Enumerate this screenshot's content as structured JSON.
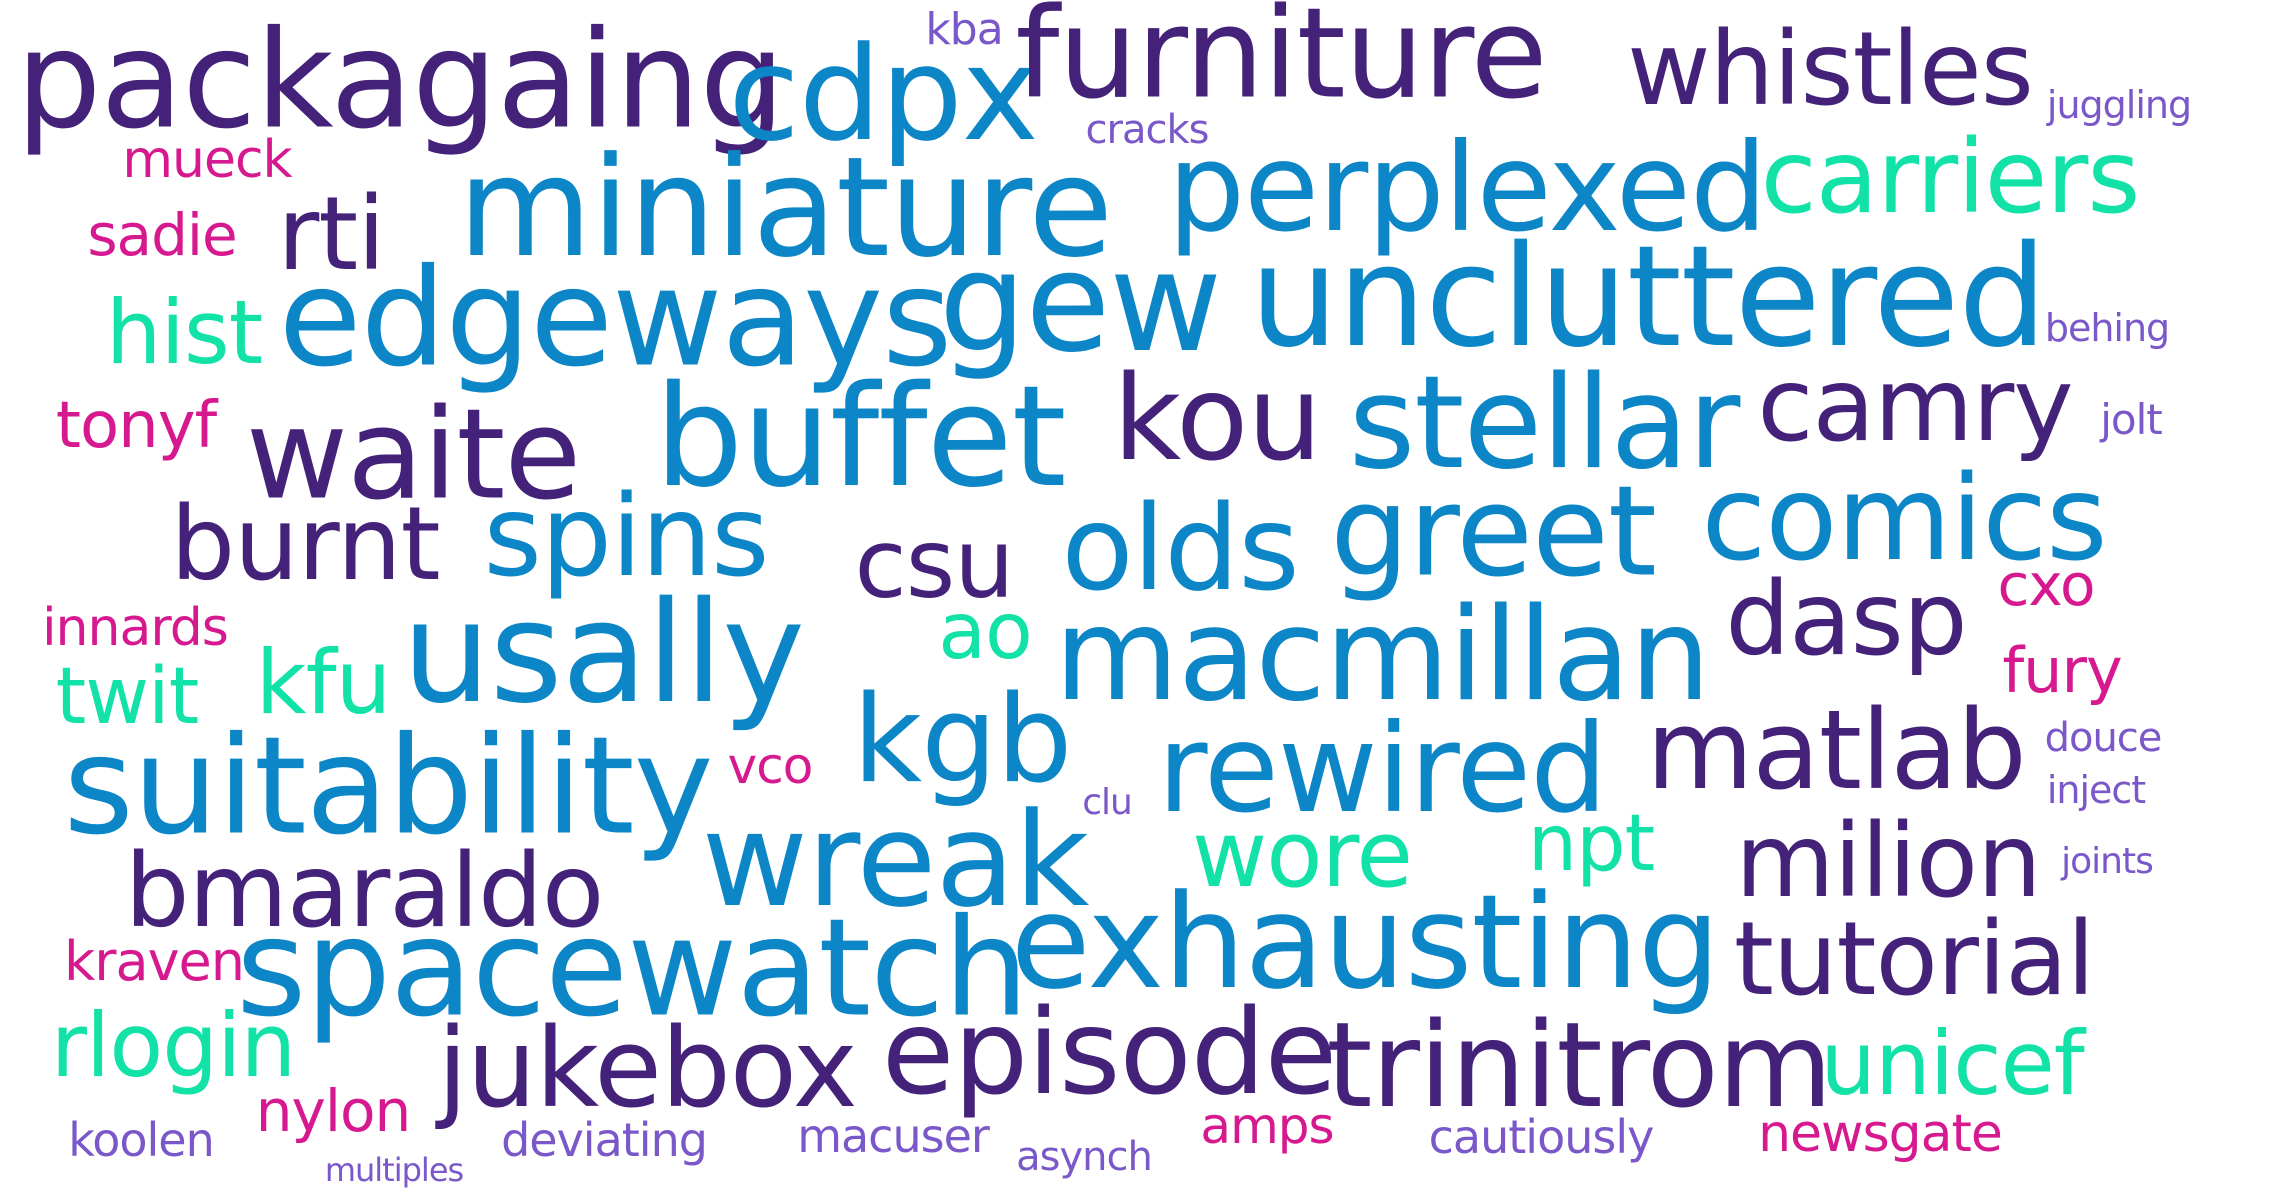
{
  "colors": {
    "c1": "#44227A",
    "c2": "#0C86C6",
    "c3": "#12E2A7",
    "c4": "#D6198F",
    "c5": "#7B58C9"
  },
  "words": [
    {
      "text": "packagaing",
      "color": "c1",
      "weight": 95
    },
    {
      "text": "cdpx",
      "color": "c2",
      "weight": 92
    },
    {
      "text": "furniture",
      "color": "c1",
      "weight": 92
    },
    {
      "text": "whistles",
      "color": "c1",
      "weight": 80
    },
    {
      "text": "kba",
      "color": "c5",
      "weight": 30
    },
    {
      "text": "juggling",
      "color": "c5",
      "weight": 24
    },
    {
      "text": "cracks",
      "color": "c5",
      "weight": 26
    },
    {
      "text": "mueck",
      "color": "c4",
      "weight": 34
    },
    {
      "text": "miniature",
      "color": "c2",
      "weight": 100
    },
    {
      "text": "perplexed",
      "color": "c2",
      "weight": 92
    },
    {
      "text": "carriers",
      "color": "c3",
      "weight": 78
    },
    {
      "text": "sadie",
      "color": "c4",
      "weight": 34
    },
    {
      "text": "rti",
      "color": "c1",
      "weight": 85
    },
    {
      "text": "edgeways",
      "color": "c2",
      "weight": 100
    },
    {
      "text": "gew",
      "color": "c2",
      "weight": 100
    },
    {
      "text": "uncluttered",
      "color": "c2",
      "weight": 100
    },
    {
      "text": "hist",
      "color": "c3",
      "weight": 50
    },
    {
      "text": "behing",
      "color": "c5",
      "weight": 24
    },
    {
      "text": "tonyf",
      "color": "c4",
      "weight": 40
    },
    {
      "text": "waite",
      "color": "c1",
      "weight": 90
    },
    {
      "text": "buffet",
      "color": "c2",
      "weight": 100
    },
    {
      "text": "kou",
      "color": "c1",
      "weight": 85
    },
    {
      "text": "stellar",
      "color": "c2",
      "weight": 100
    },
    {
      "text": "camry",
      "color": "c1",
      "weight": 80
    },
    {
      "text": "jolt",
      "color": "c5",
      "weight": 26
    },
    {
      "text": "burnt",
      "color": "c1",
      "weight": 85
    },
    {
      "text": "spins",
      "color": "c2",
      "weight": 90
    },
    {
      "text": "csu",
      "color": "c1",
      "weight": 70
    },
    {
      "text": "olds",
      "color": "c2",
      "weight": 95
    },
    {
      "text": "greet",
      "color": "c2",
      "weight": 100
    },
    {
      "text": "comics",
      "color": "c2",
      "weight": 90
    },
    {
      "text": "cxo",
      "color": "c4",
      "weight": 40
    },
    {
      "text": "innards",
      "color": "c4",
      "weight": 34
    },
    {
      "text": "usally",
      "color": "c2",
      "weight": 100
    },
    {
      "text": "ao",
      "color": "c3",
      "weight": 52
    },
    {
      "text": "macmillan",
      "color": "c2",
      "weight": 100
    },
    {
      "text": "dasp",
      "color": "c1",
      "weight": 80
    },
    {
      "text": "fury",
      "color": "c4",
      "weight": 40
    },
    {
      "text": "twit",
      "color": "c3",
      "weight": 50
    },
    {
      "text": "kfu",
      "color": "c3",
      "weight": 60
    },
    {
      "text": "kgb",
      "color": "c2",
      "weight": 100
    },
    {
      "text": "douce",
      "color": "c5",
      "weight": 26
    },
    {
      "text": "suitability",
      "color": "c2",
      "weight": 100
    },
    {
      "text": "vco",
      "color": "c4",
      "weight": 34
    },
    {
      "text": "rewired",
      "color": "c2",
      "weight": 100
    },
    {
      "text": "matlab",
      "color": "c1",
      "weight": 90
    },
    {
      "text": "inject",
      "color": "c5",
      "weight": 26
    },
    {
      "text": "clu",
      "color": "c5",
      "weight": 24
    },
    {
      "text": "wreak",
      "color": "c2",
      "weight": 100
    },
    {
      "text": "wore",
      "color": "c3",
      "weight": 60
    },
    {
      "text": "npt",
      "color": "c3",
      "weight": 52
    },
    {
      "text": "milion",
      "color": "c1",
      "weight": 85
    },
    {
      "text": "joints",
      "color": "c5",
      "weight": 24
    },
    {
      "text": "bmaraldo",
      "color": "c1",
      "weight": 85
    },
    {
      "text": "exhausting",
      "color": "c2",
      "weight": 100
    },
    {
      "text": "kraven",
      "color": "c4",
      "weight": 34
    },
    {
      "text": "spacewatch",
      "color": "c2",
      "weight": 100
    },
    {
      "text": "tutorial",
      "color": "c1",
      "weight": 85
    },
    {
      "text": "rlogin",
      "color": "c3",
      "weight": 60
    },
    {
      "text": "jukebox",
      "color": "c1",
      "weight": 85
    },
    {
      "text": "episode",
      "color": "c1",
      "weight": 100
    },
    {
      "text": "trinitrom",
      "color": "c1",
      "weight": 95
    },
    {
      "text": "unicef",
      "color": "c3",
      "weight": 70
    },
    {
      "text": "nylon",
      "color": "c4",
      "weight": 40
    },
    {
      "text": "amps",
      "color": "c4",
      "weight": 36
    },
    {
      "text": "koolen",
      "color": "c5",
      "weight": 30
    },
    {
      "text": "deviating",
      "color": "c5",
      "weight": 30
    },
    {
      "text": "macuser",
      "color": "c5",
      "weight": 30
    },
    {
      "text": "cautiously",
      "color": "c5",
      "weight": 30
    },
    {
      "text": "newsgate",
      "color": "c4",
      "weight": 34
    },
    {
      "text": "multiples",
      "color": "c5",
      "weight": 22
    },
    {
      "text": "asynch",
      "color": "c5",
      "weight": 26
    }
  ]
}
